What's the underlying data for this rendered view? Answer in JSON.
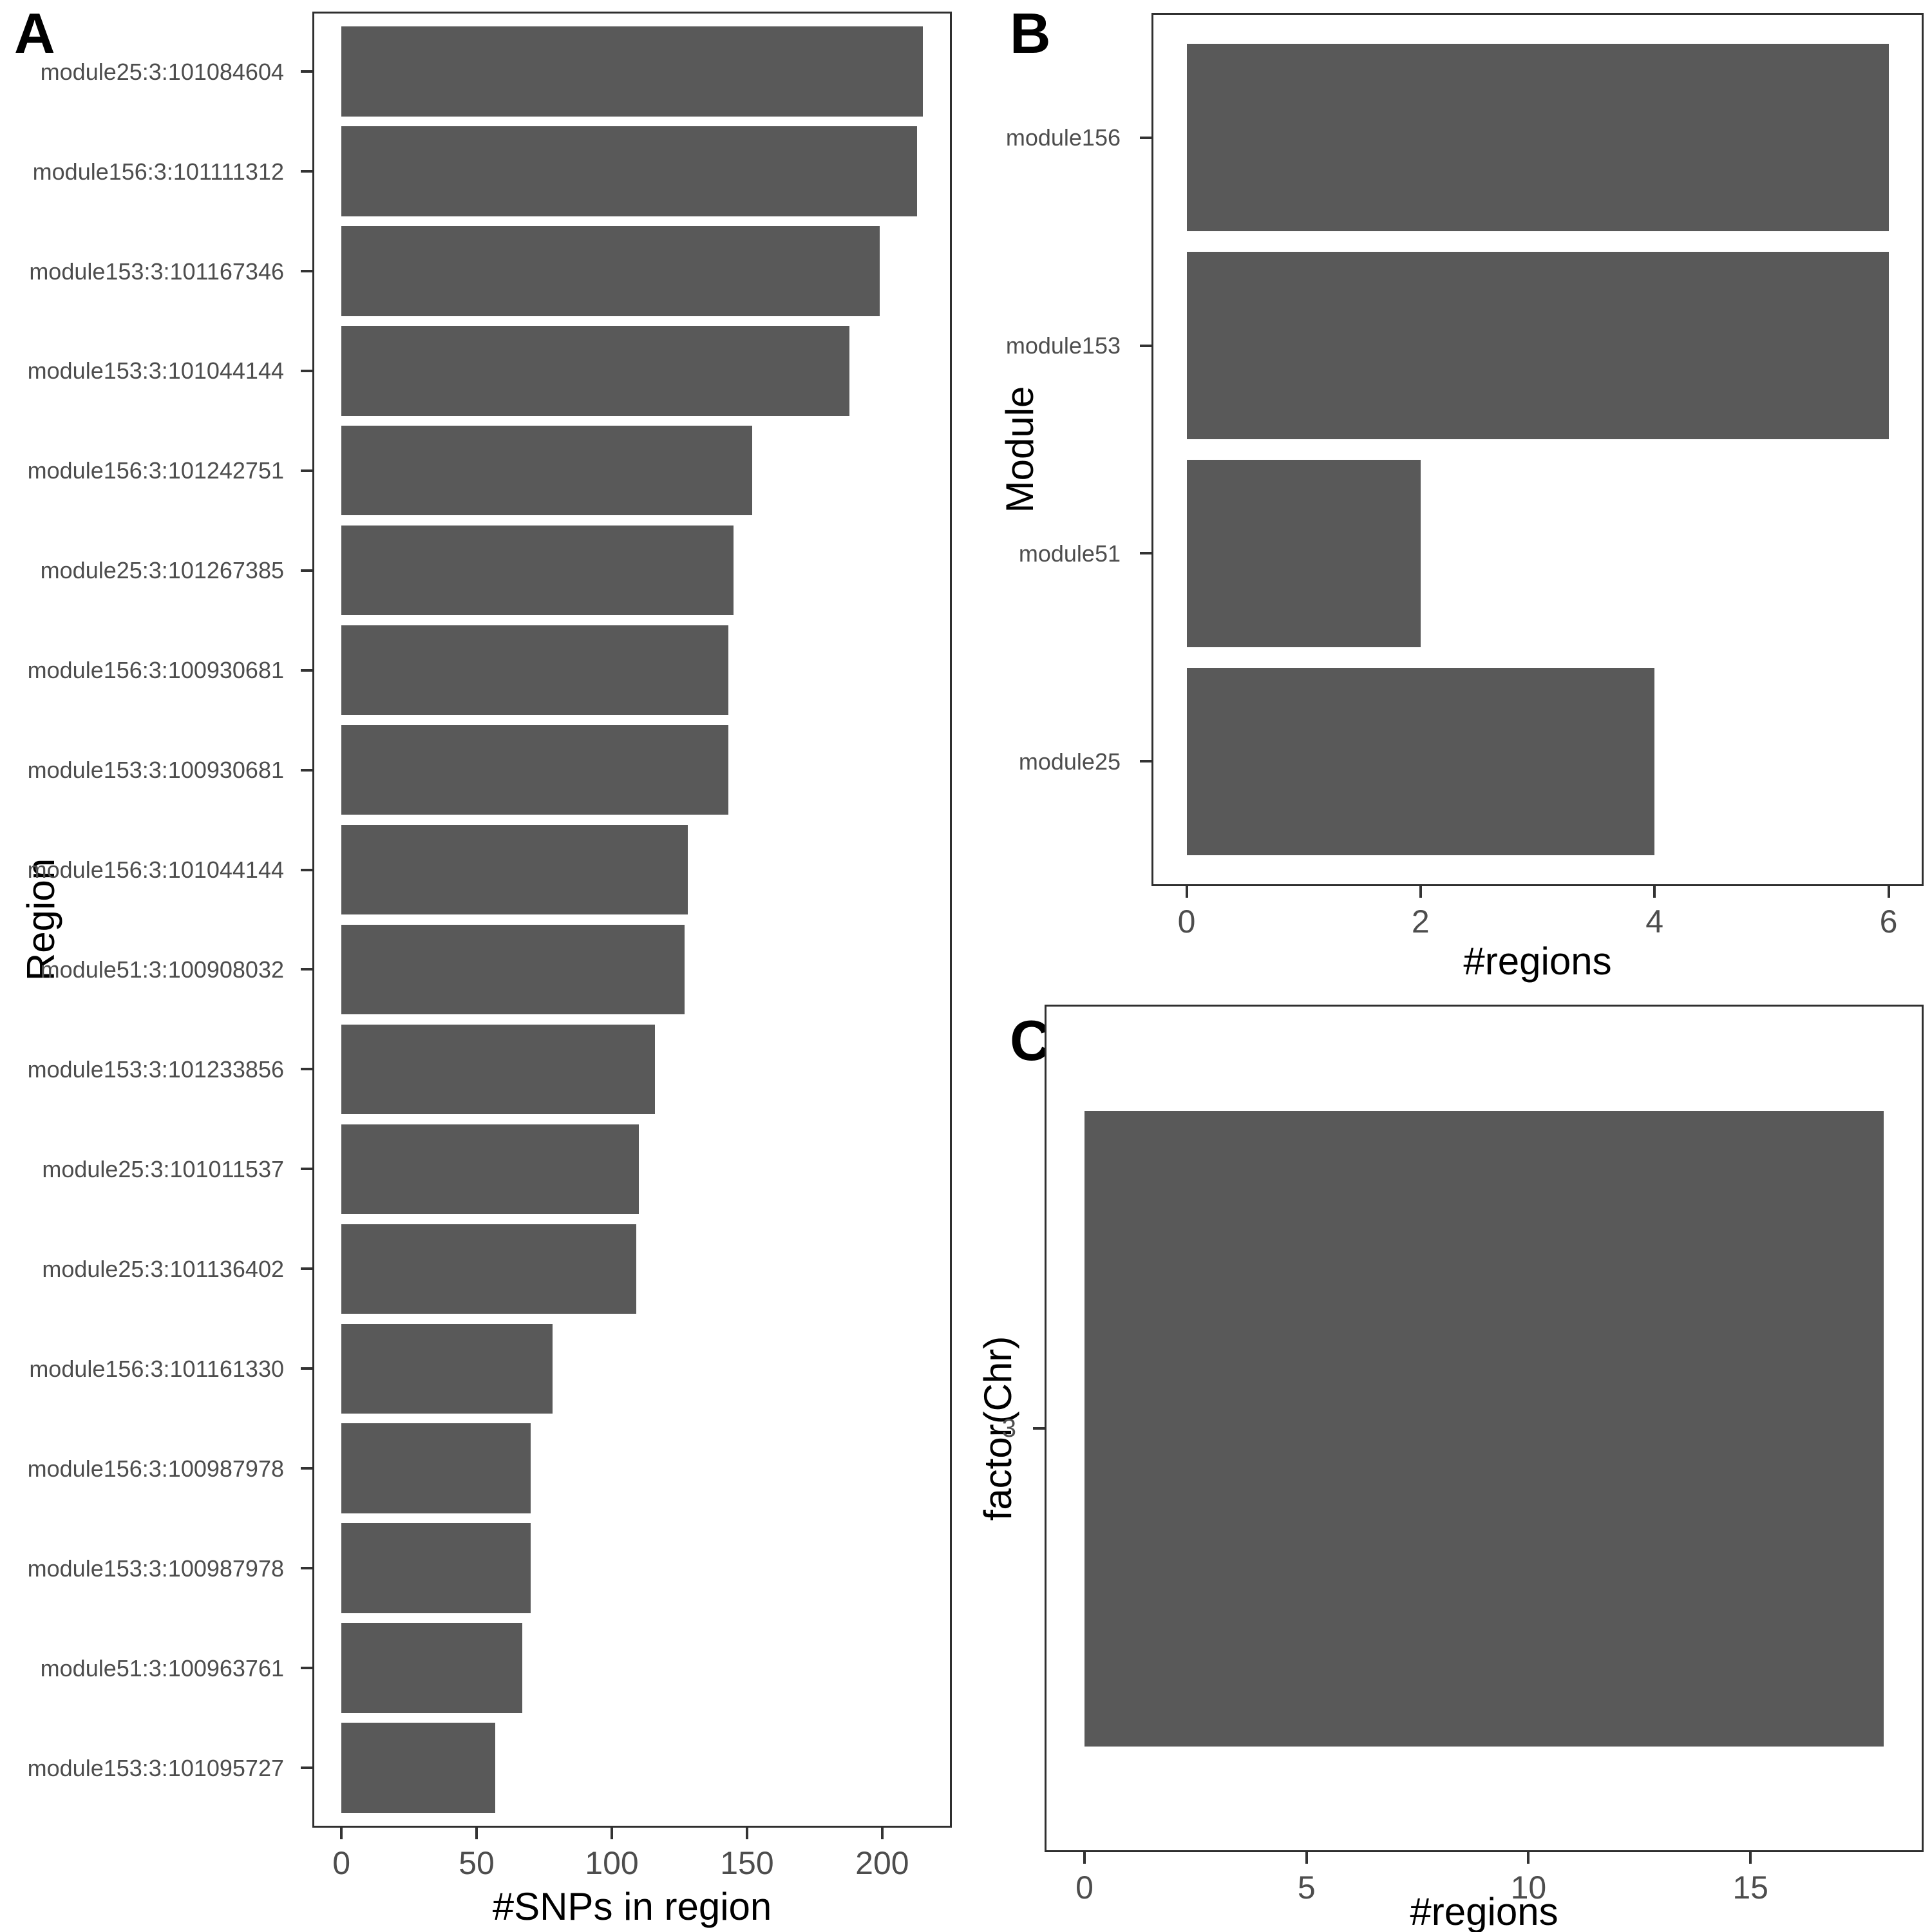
{
  "figure": {
    "background": "#ffffff",
    "panel_letters": [
      "A",
      "B",
      "C"
    ]
  },
  "colors": {
    "bar_fill": "#595959",
    "panel_border": "#2f2f2f",
    "tick_mark": "#333333",
    "axis_text": "#4d4d4d",
    "axis_title": "#000000",
    "panel_letter": "#000000"
  },
  "chart_data": [
    {
      "id": "A",
      "title": "A",
      "type": "bar",
      "orientation": "horizontal",
      "grid": false,
      "legend": false,
      "xlabel": "#SNPs in region",
      "ylabel": "Region",
      "xticks": [
        0,
        50,
        100,
        150,
        200
      ],
      "xlim": [
        0,
        226
      ],
      "categories": [
        "module25:3:101084604",
        "module156:3:101111312",
        "module153:3:101167346",
        "module153:3:101044144",
        "module156:3:101242751",
        "module25:3:101267385",
        "module156:3:100930681",
        "module153:3:100930681",
        "module156:3:101044144",
        "module51:3:100908032",
        "module153:3:101233856",
        "module25:3:101011537",
        "module25:3:101136402",
        "module156:3:101161330",
        "module156:3:100987978",
        "module153:3:100987978",
        "module51:3:100963761",
        "module153:3:101095727"
      ],
      "values": [
        215,
        213,
        199,
        188,
        152,
        145,
        143,
        143,
        128,
        127,
        116,
        110,
        109,
        78,
        70,
        70,
        67,
        57
      ]
    },
    {
      "id": "B",
      "title": "B",
      "type": "bar",
      "orientation": "horizontal",
      "grid": false,
      "legend": false,
      "xlabel": "#regions",
      "ylabel": "Module",
      "xticks": [
        0,
        2,
        4,
        6
      ],
      "xlim": [
        0,
        6.6
      ],
      "categories": [
        "module156",
        "module153",
        "module51",
        "module25"
      ],
      "values": [
        6,
        6,
        2,
        4
      ]
    },
    {
      "id": "C",
      "title": "C",
      "type": "bar",
      "orientation": "horizontal",
      "grid": false,
      "legend": false,
      "xlabel": "#regions",
      "ylabel": "factor(Chr)",
      "xticks": [
        0,
        5,
        10,
        15
      ],
      "xlim": [
        0,
        18.9
      ],
      "categories": [
        "3"
      ],
      "values": [
        18
      ]
    }
  ]
}
